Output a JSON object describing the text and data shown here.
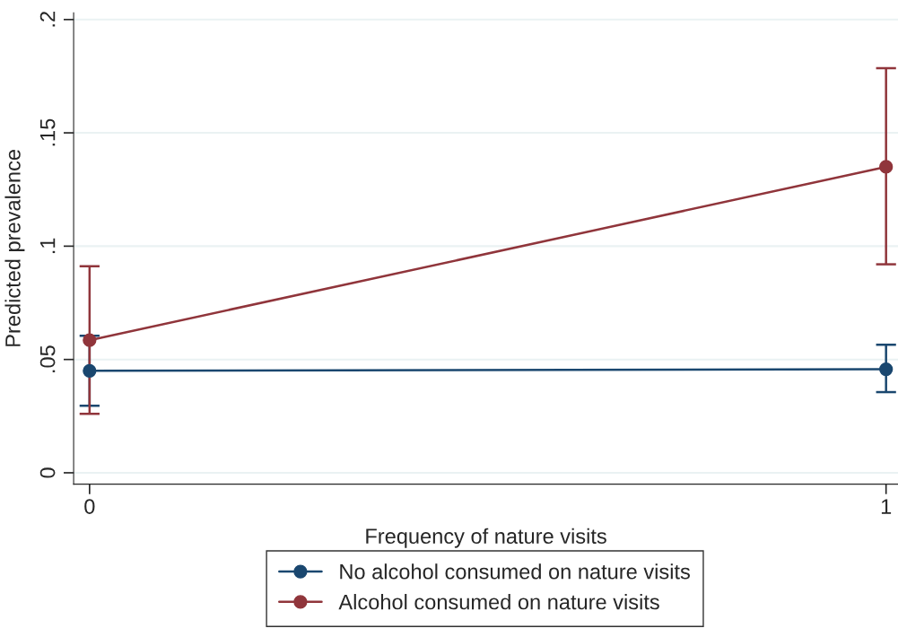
{
  "chart_data": {
    "type": "line",
    "xlabel": "Frequency of nature visits",
    "ylabel": "Predicted prevalence",
    "x": [
      0,
      1
    ],
    "xlim": [
      -0.02,
      1.015
    ],
    "xticks": [
      0,
      1
    ],
    "ylim": [
      -0.005,
      0.203
    ],
    "yticks": [
      {
        "value": 0,
        "label": "0"
      },
      {
        "value": 0.05,
        "label": ".05"
      },
      {
        "value": 0.1,
        "label": ".1"
      },
      {
        "value": 0.15,
        "label": ".15"
      },
      {
        "value": 0.2,
        "label": ".2"
      }
    ],
    "series": [
      {
        "name": "No alcohol consumed on nature visits",
        "color": "#1a476f",
        "values": [
          0.045,
          0.0457
        ],
        "errors": [
          [
            0.0296,
            0.0605
          ],
          [
            0.0356,
            0.0565
          ]
        ]
      },
      {
        "name": "Alcohol consumed on nature visits",
        "color": "#90353b",
        "values": [
          0.0585,
          0.135
        ],
        "errors": [
          [
            0.026,
            0.0911
          ],
          [
            0.092,
            0.1785
          ]
        ]
      }
    ],
    "grid": "y",
    "legend": "bottom",
    "marker": "circle",
    "line_style": "solid"
  }
}
